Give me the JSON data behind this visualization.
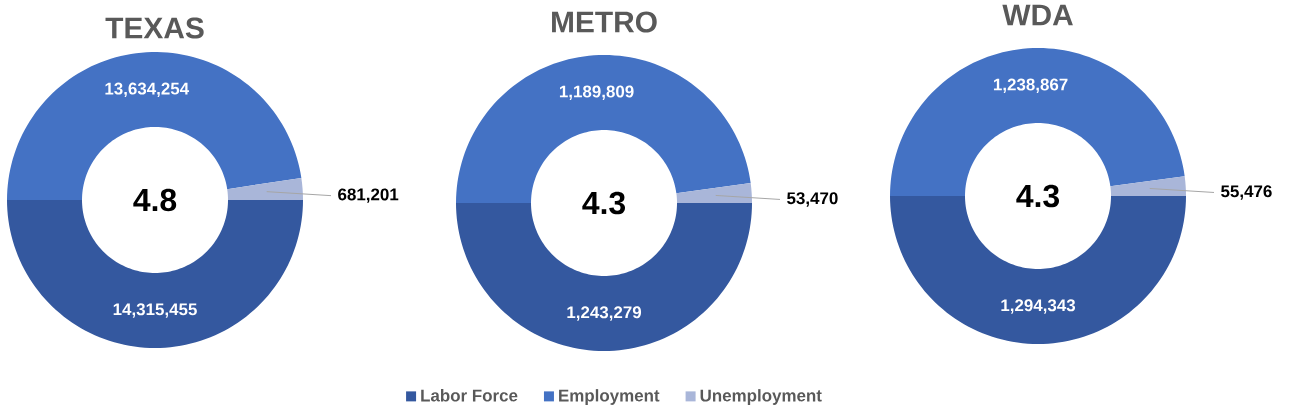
{
  "chart_data": [
    {
      "type": "donut",
      "title": "TEXAS",
      "categories": [
        null,
        null,
        null
      ],
      "values": [
        14315455,
        13634254,
        681201
      ],
      "value_labels": [
        "14,315,455",
        "13,634,254",
        "681,201"
      ],
      "colors": [
        "#34589f",
        "#4472c4",
        "#a9b6d9"
      ],
      "annotations": [
        "4.8"
      ]
    },
    {
      "type": "donut",
      "title": "METRO",
      "categories": [
        "Labor Force",
        "Employment",
        "Unemployment"
      ],
      "values": [
        1243279,
        1189809,
        53470
      ],
      "value_labels": [
        "1,243,279",
        "1,189,809",
        "53,470"
      ],
      "colors": [
        "#34589f",
        "#4472c4",
        "#a9b6d9"
      ],
      "annotations": [
        "4.3"
      ],
      "legend": "bottom"
    },
    {
      "type": "donut",
      "title": "WDA",
      "categories": [
        null,
        null,
        null
      ],
      "values": [
        1294343,
        1238867,
        55476
      ],
      "value_labels": [
        "1,294,343",
        "1,238,867",
        "55,476"
      ],
      "colors": [
        "#34589f",
        "#4472c4",
        "#a9b6d9"
      ],
      "annotations": [
        "4.3"
      ]
    }
  ]
}
